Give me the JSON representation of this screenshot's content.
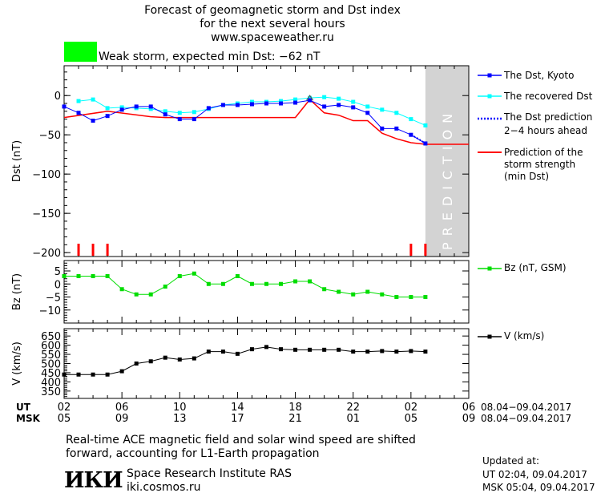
{
  "header": {
    "title_line1": "Forecast of geomagnetic storm and Dst index",
    "title_line2": "for the next several hours",
    "website": "www.spaceweather.ru"
  },
  "storm": {
    "label": "Weak storm, expected min Dst: −62 nT",
    "color": "#00ff00"
  },
  "legend": {
    "dst_kyoto": "The Dst, Kyoto",
    "dst_recovered": "The recovered Dst",
    "dst_prediction_l1": "The Dst prediction",
    "dst_prediction_l2": "2−4 hours ahead",
    "storm_strength_l1": "Prediction of the",
    "storm_strength_l2": "storm strength",
    "storm_strength_l3": "(min Dst)",
    "bz": "Bz (nT, GSM)",
    "v": "V (km/s)"
  },
  "prediction_label": "PREDICTION",
  "time_axis": {
    "ut_label": "UT",
    "msk_label": "MSK",
    "ut_ticks": [
      "02",
      "06",
      "10",
      "14",
      "18",
      "22",
      "02",
      "06"
    ],
    "msk_ticks": [
      "05",
      "09",
      "13",
      "17",
      "21",
      "01",
      "05",
      "09"
    ],
    "ut_range": "08.04−09.04.2017",
    "msk_range": "08.04−09.04.2017"
  },
  "footer": {
    "note_line1": "Real-time ACE magnetic field and solar wind speed are shifted",
    "note_line2": "forward, accounting for L1-Earth propagation",
    "logo_text": "ИКИ",
    "institute": "Space Research Institute RAS",
    "institute_url": "iki.cosmos.ru",
    "updated_label": "Updated at:",
    "updated_ut": "UT   02:04, 09.04.2017",
    "updated_msk": "MSK 05:04, 09.04.2017"
  },
  "colors": {
    "kyoto": "#0000ff",
    "recovered": "#00ffff",
    "prediction": "#0000ff",
    "strength": "#ff0000",
    "bz": "#00dd00",
    "v": "#000000",
    "prediction_shade": "#d3d3d3"
  },
  "chart_data": [
    {
      "type": "line",
      "ylabel": "Dst (nT)",
      "ylim": [
        -205,
        38
      ],
      "yticks": [
        0,
        -50,
        -100,
        -150,
        -200
      ],
      "xlim": [
        2,
        30
      ],
      "prediction_region": [
        27,
        30
      ],
      "series": [
        {
          "name": "The Dst, Kyoto",
          "x": [
            2,
            3,
            4,
            5,
            6,
            7,
            8,
            9,
            10,
            11,
            12,
            13,
            14,
            15,
            16,
            17,
            18,
            19,
            20,
            21,
            22,
            23,
            24,
            25,
            26,
            27
          ],
          "y": [
            -14,
            -22,
            -32,
            -26,
            -18,
            -14,
            -14,
            -24,
            -30,
            -30,
            -16,
            -12,
            -12,
            -11,
            -10,
            -10,
            -9,
            -6,
            -14,
            -12,
            -15,
            -22,
            -42,
            -42,
            -50,
            -61
          ]
        },
        {
          "name": "The recovered Dst",
          "x": [
            3,
            4,
            5,
            6,
            7,
            8,
            9,
            10,
            11,
            12,
            13,
            14,
            15,
            16,
            17,
            18,
            19,
            20,
            21,
            22,
            23,
            24,
            25,
            26,
            27
          ],
          "y": [
            -7,
            -5,
            -16,
            -15,
            -16,
            -17,
            -20,
            -22,
            -21,
            -17,
            -12,
            -10,
            -8,
            -8,
            -7,
            -5,
            -3,
            -2,
            -4,
            -8,
            -14,
            -18,
            -22,
            -30,
            -38
          ]
        },
        {
          "name": "The Dst prediction 2−4 hours ahead",
          "x": [
            26,
            26.5,
            27
          ],
          "y": [
            -50,
            -55,
            -61
          ]
        },
        {
          "name": "Prediction of the storm strength (min Dst)",
          "x": [
            2,
            5,
            8,
            9,
            10,
            17,
            18,
            19,
            20,
            21,
            22,
            23,
            24,
            25,
            26,
            27,
            30
          ],
          "y": [
            -28,
            -20,
            -27,
            -28,
            -28,
            -28,
            -28,
            -5,
            -22,
            -25,
            -32,
            -32,
            -48,
            -55,
            -60,
            -62,
            -62
          ]
        }
      ],
      "storm_markers_x": [
        3,
        4,
        5,
        26,
        27
      ],
      "peak_marker": {
        "x": 19,
        "y": -3
      }
    },
    {
      "type": "line",
      "ylabel": "Bz (nT)",
      "ylim": [
        -15,
        9
      ],
      "yticks": [
        5,
        0,
        -5,
        -10
      ],
      "series": [
        {
          "name": "Bz (nT, GSM)",
          "x": [
            2,
            3,
            4,
            5,
            6,
            7,
            8,
            9,
            10,
            11,
            12,
            13,
            14,
            15,
            16,
            17,
            18,
            19,
            20,
            21,
            22,
            23,
            24,
            25,
            26,
            27
          ],
          "y": [
            3,
            3,
            3,
            3,
            -2,
            -4,
            -4,
            -1,
            3,
            4,
            0,
            0,
            3,
            0,
            0,
            0,
            1,
            1,
            -2,
            -3,
            -4,
            -3,
            -4,
            -5,
            -5,
            -5
          ]
        }
      ]
    },
    {
      "type": "line",
      "ylabel": "V (km/s)",
      "ylim": [
        310,
        690
      ],
      "yticks": [
        650,
        600,
        550,
        500,
        450,
        400,
        350
      ],
      "series": [
        {
          "name": "V (km/s)",
          "x": [
            2,
            3,
            4,
            5,
            6,
            7,
            8,
            9,
            10,
            11,
            12,
            13,
            14,
            15,
            16,
            17,
            18,
            19,
            20,
            21,
            22,
            23,
            24,
            25,
            26,
            27
          ],
          "y": [
            440,
            440,
            440,
            440,
            458,
            500,
            512,
            532,
            522,
            528,
            565,
            565,
            553,
            578,
            590,
            578,
            575,
            575,
            575,
            575,
            565,
            565,
            568,
            565,
            568,
            565
          ]
        }
      ]
    }
  ]
}
